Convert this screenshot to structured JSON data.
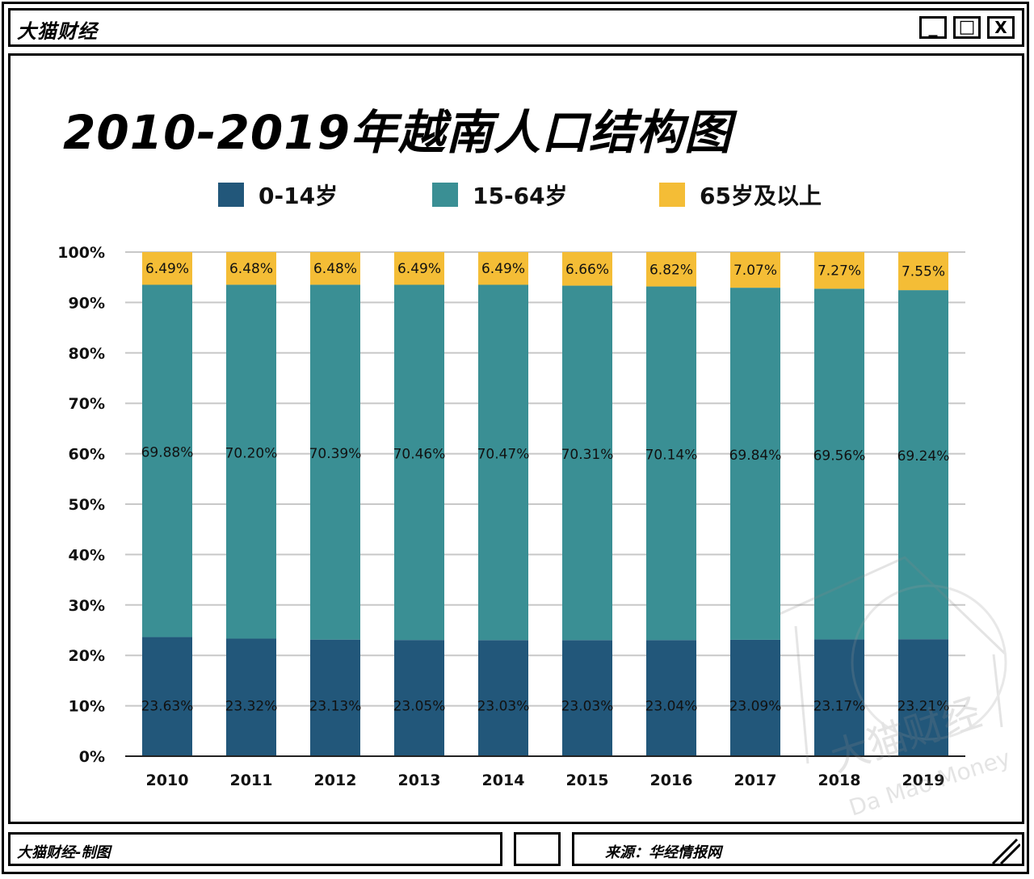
{
  "app": {
    "title": "大猫财经",
    "min_symbol": "_",
    "max_symbol": "□",
    "close_symbol": "X"
  },
  "footer": {
    "left": "大猫财经-制图",
    "right": "来源：华经情报网"
  },
  "watermark": {
    "text_cn": "大猫财经",
    "text_en": "Da Mao Money"
  },
  "colors": {
    "age_0_14": "#22577a",
    "age_15_64": "#3a8f94",
    "age_65_plus": "#f4bd36",
    "grid": "#c8c8c8"
  },
  "chart_data": {
    "type": "bar",
    "stacked": true,
    "title": "2010-2019年越南人口结构图",
    "categories": [
      "2010",
      "2011",
      "2012",
      "2013",
      "2014",
      "2015",
      "2016",
      "2017",
      "2018",
      "2019"
    ],
    "series": [
      {
        "name": "0-14岁",
        "values": [
          23.63,
          23.32,
          23.13,
          23.05,
          23.03,
          23.03,
          23.04,
          23.09,
          23.17,
          23.21
        ],
        "labels": [
          "23.63%",
          "23.32%",
          "23.13%",
          "23.05%",
          "23.03%",
          "23.03%",
          "23.04%",
          "23.09%",
          "23.17%",
          "23.21%"
        ]
      },
      {
        "name": "15-64岁",
        "values": [
          69.88,
          70.2,
          70.39,
          70.46,
          70.47,
          70.31,
          70.14,
          69.84,
          69.56,
          69.24
        ],
        "labels": [
          "69.88%",
          "70.20%",
          "70.39%",
          "70.46%",
          "70.47%",
          "70.31%",
          "70.14%",
          "69.84%",
          "69.56%",
          "69.24%"
        ]
      },
      {
        "name": "65岁及以上",
        "values": [
          6.49,
          6.48,
          6.48,
          6.49,
          6.49,
          6.66,
          6.82,
          7.07,
          7.27,
          7.55
        ],
        "labels": [
          "6.49%",
          "6.48%",
          "6.48%",
          "6.49%",
          "6.49%",
          "6.66%",
          "6.82%",
          "7.07%",
          "7.27%",
          "7.55%"
        ]
      }
    ],
    "yticks": [
      "0%",
      "10%",
      "20%",
      "30%",
      "40%",
      "50%",
      "60%",
      "70%",
      "80%",
      "90%",
      "100%"
    ],
    "ylim": [
      0,
      100
    ],
    "xlabel": "",
    "ylabel": "",
    "grid": true,
    "legend": "top-center"
  }
}
